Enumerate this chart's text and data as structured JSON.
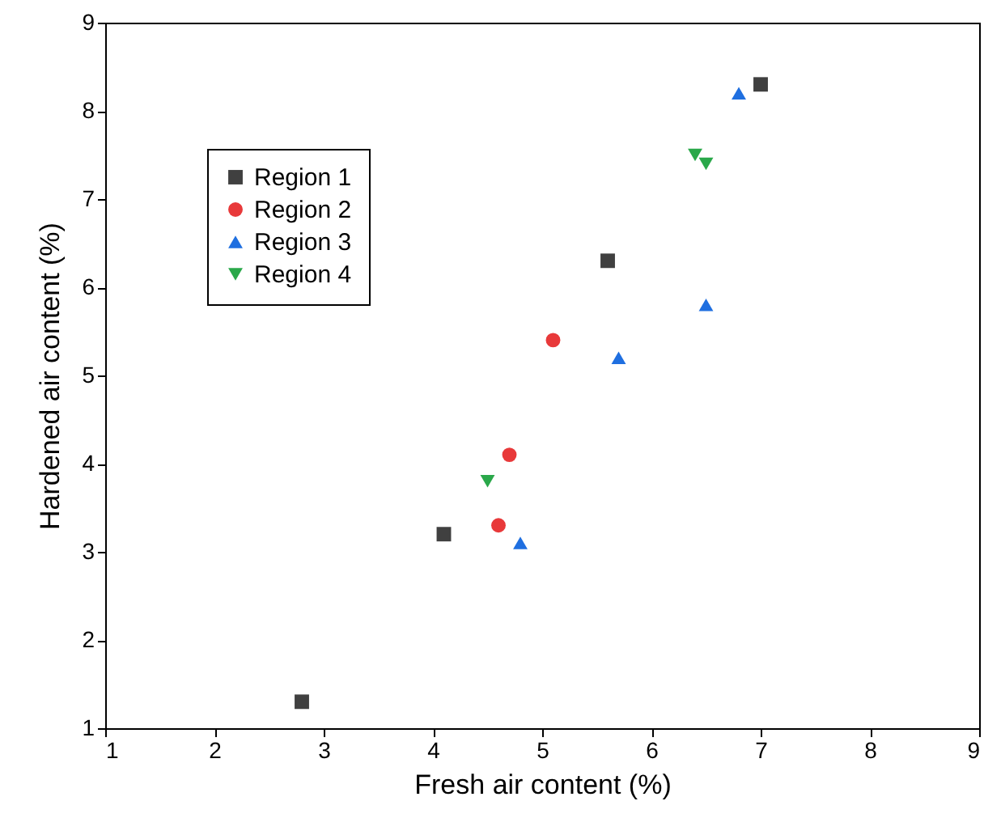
{
  "chart_data": {
    "type": "scatter",
    "xlabel": "Fresh air content (%)",
    "ylabel": "Hardened air content (%)",
    "xlim": [
      1,
      9
    ],
    "xticks": [
      1,
      2,
      3,
      4,
      5,
      6,
      7,
      8,
      9
    ],
    "ylim": [
      1,
      9
    ],
    "yticks": [
      1,
      2,
      3,
      4,
      5,
      6,
      7,
      8,
      9
    ],
    "legend": "top left",
    "grid": false,
    "series": [
      {
        "name": "Region 1",
        "color": "#404040",
        "marker": "square",
        "x": [
          2.8,
          4.1,
          5.6,
          7.0
        ],
        "values": [
          1.3,
          3.2,
          6.3,
          8.3
        ]
      },
      {
        "name": "Region 2",
        "color": "#e8393a",
        "marker": "circle",
        "x": [
          4.6,
          4.7,
          5.1
        ],
        "values": [
          3.3,
          4.1,
          5.4
        ]
      },
      {
        "name": "Region 3",
        "color": "#1f6fe0",
        "marker": "triangle",
        "x": [
          4.8,
          5.7,
          6.5,
          6.8
        ],
        "values": [
          3.1,
          5.2,
          5.8,
          8.2
        ]
      },
      {
        "name": "Region 4",
        "color": "#2aa84a",
        "marker": "triangle-down",
        "x": [
          4.5,
          6.4,
          6.5
        ],
        "values": [
          3.8,
          7.5,
          7.4
        ]
      }
    ]
  }
}
